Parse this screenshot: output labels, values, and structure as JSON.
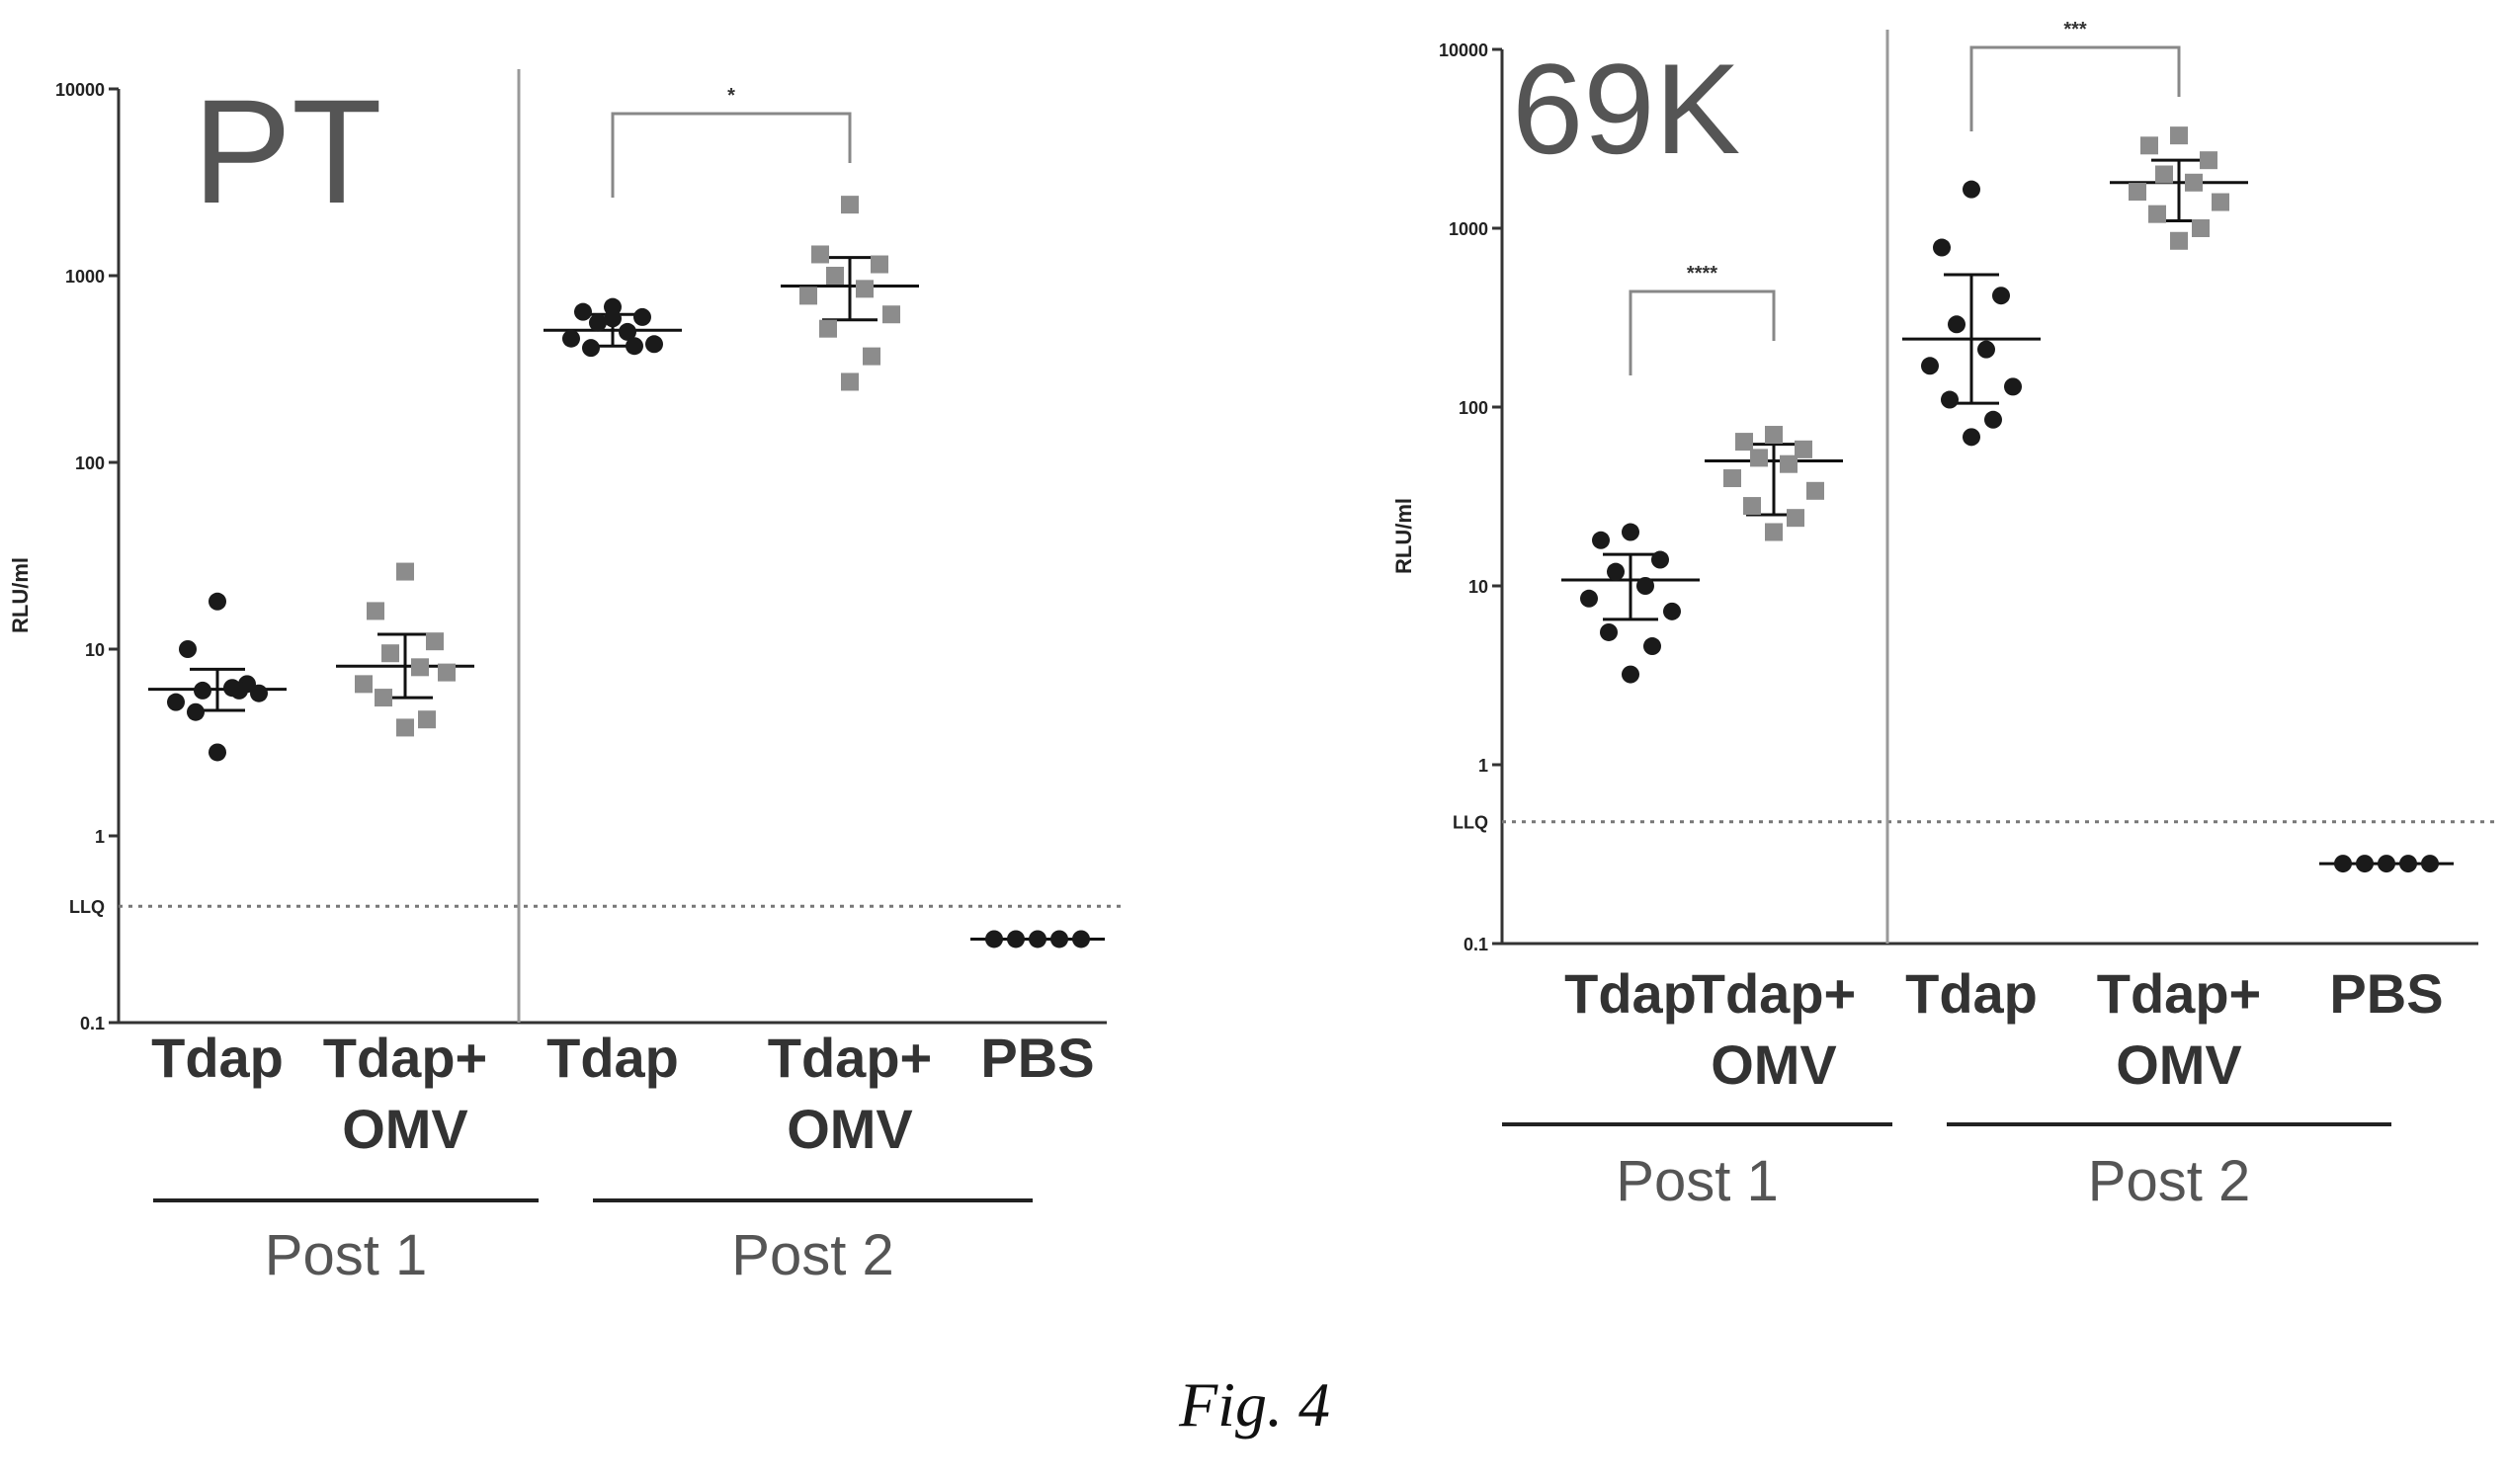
{
  "figure_caption": "Fig. 4",
  "styles": {
    "tdap_color": "#1a1a1a",
    "omv_color": "#8c8c8c",
    "axis_color": "#333333",
    "divider_color": "#999999"
  },
  "chart_data": [
    {
      "type": "scatter",
      "title": "PT",
      "ylabel": "RLU/ml",
      "yscale": "log",
      "ylim": [
        0.1,
        10000
      ],
      "yticks": [
        "0.1",
        "1",
        "10",
        "100",
        "1000",
        "10000"
      ],
      "llq": {
        "label": "LLQ",
        "value": 0.42
      },
      "categories": [
        "Tdap",
        "Tdap+\nOMV",
        "Tdap",
        "Tdap+\nOMV",
        "PBS"
      ],
      "category_lines": [
        [
          "Tdap"
        ],
        [
          "Tdap+",
          "OMV"
        ],
        [
          "Tdap"
        ],
        [
          "Tdap+",
          "OMV"
        ],
        [
          "PBS"
        ]
      ],
      "groups": [
        {
          "label": "Post 1",
          "categories": [
            0,
            1
          ]
        },
        {
          "label": "Post 2",
          "categories": [
            2,
            3,
            4
          ]
        }
      ],
      "divider_after_category": 1,
      "series": [
        {
          "category": 0,
          "marker": "circle",
          "color": "dark",
          "values": [
            18,
            10,
            6.5,
            6.0,
            6.2,
            5.2,
            5.8,
            4.6,
            6.0,
            2.8
          ],
          "mean": 6.1,
          "sd_low": 4.7,
          "sd_high": 7.8
        },
        {
          "category": 1,
          "marker": "square",
          "color": "gray",
          "values": [
            26,
            16,
            11,
            9.5,
            8.0,
            6.5,
            7.5,
            5.5,
            4.2,
            3.8
          ],
          "mean": 8.1,
          "sd_low": 5.5,
          "sd_high": 12
        },
        {
          "category": 2,
          "marker": "circle",
          "color": "dark",
          "values": [
            680,
            640,
            600,
            560,
            500,
            460,
            430,
            410,
            420,
            590
          ],
          "mean": 510,
          "sd_low": 420,
          "sd_high": 620
        },
        {
          "category": 3,
          "marker": "square",
          "color": "gray",
          "values": [
            2400,
            1300,
            1150,
            1000,
            850,
            780,
            620,
            520,
            370,
            270
          ],
          "mean": 880,
          "sd_low": 580,
          "sd_high": 1250
        },
        {
          "category": 4,
          "marker": "circle",
          "color": "dark",
          "values": [
            0.28,
            0.28,
            0.28,
            0.28,
            0.28
          ],
          "mean": 0.28
        }
      ],
      "comparisons": [
        {
          "from": 2,
          "to": 3,
          "label": "*"
        }
      ]
    },
    {
      "type": "scatter",
      "title": "69K",
      "ylabel": "RLU/ml",
      "yscale": "log",
      "ylim": [
        0.1,
        10000
      ],
      "yticks": [
        "0.1",
        "1",
        "10",
        "100",
        "1000",
        "10000"
      ],
      "llq": {
        "label": "LLQ",
        "value": 0.48
      },
      "categories": [
        "Tdap",
        "Tdap+\nOMV",
        "Tdap",
        "Tdap+\nOMV",
        "PBS"
      ],
      "category_lines": [
        [
          "Tdap"
        ],
        [
          "Tdap+",
          "OMV"
        ],
        [
          "Tdap"
        ],
        [
          "Tdap+",
          "OMV"
        ],
        [
          "PBS"
        ]
      ],
      "groups": [
        {
          "label": "Post 1",
          "categories": [
            0,
            1
          ]
        },
        {
          "label": "Post 2",
          "categories": [
            2,
            3,
            4
          ]
        }
      ],
      "divider_after_category": 1,
      "series": [
        {
          "category": 0,
          "marker": "circle",
          "color": "dark",
          "values": [
            20,
            18,
            14,
            12,
            10,
            8.5,
            7.2,
            5.5,
            4.6,
            3.2
          ],
          "mean": 10.8,
          "sd_low": 6.5,
          "sd_high": 15
        },
        {
          "category": 1,
          "marker": "square",
          "color": "gray",
          "values": [
            70,
            64,
            58,
            52,
            48,
            40,
            34,
            28,
            24,
            20
          ],
          "mean": 50,
          "sd_low": 25,
          "sd_high": 62
        },
        {
          "category": 2,
          "marker": "circle",
          "color": "dark",
          "values": [
            1650,
            780,
            420,
            290,
            210,
            170,
            130,
            110,
            85,
            68
          ],
          "mean": 240,
          "sd_low": 105,
          "sd_high": 550
        },
        {
          "category": 3,
          "marker": "square",
          "color": "gray",
          "values": [
            3300,
            2900,
            2400,
            2000,
            1800,
            1600,
            1400,
            1200,
            1000,
            850
          ],
          "mean": 1800,
          "sd_low": 1100,
          "sd_high": 2400
        },
        {
          "category": 4,
          "marker": "circle",
          "color": "dark",
          "values": [
            0.28,
            0.28,
            0.28,
            0.28,
            0.28
          ],
          "mean": 0.28
        }
      ],
      "comparisons": [
        {
          "from": 0,
          "to": 1,
          "label": "****"
        },
        {
          "from": 2,
          "to": 3,
          "label": "***"
        }
      ]
    }
  ]
}
